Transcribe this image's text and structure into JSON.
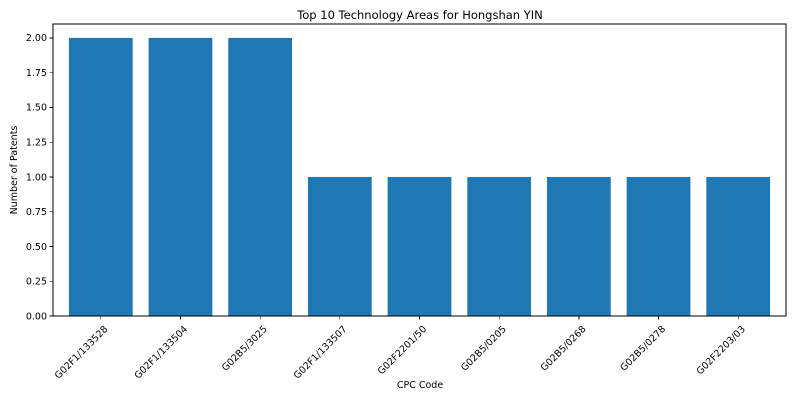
{
  "chart_data": {
    "type": "bar",
    "title": "Top 10 Technology Areas for Hongshan YIN",
    "xlabel": "CPC Code",
    "ylabel": "Number of Patents",
    "categories": [
      "G02F1/133528",
      "G02F1/133504",
      "G02B5/3025",
      "G02F1/133507",
      "G02F2201/50",
      "G02B5/0205",
      "G02B5/0268",
      "G02B5/0278",
      "G02F2203/03"
    ],
    "values": [
      2,
      2,
      2,
      1,
      1,
      1,
      1,
      1,
      1
    ],
    "ylim": [
      0,
      2.1
    ],
    "yticks": [
      "0.00",
      "0.25",
      "0.50",
      "0.75",
      "1.00",
      "1.25",
      "1.50",
      "1.75",
      "2.00"
    ],
    "grid": false,
    "bar_color": "#1f77b4"
  }
}
